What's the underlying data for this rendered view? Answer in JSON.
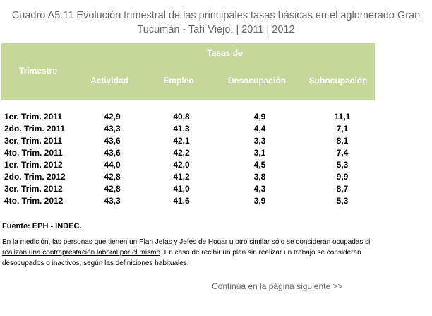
{
  "title": {
    "line1": "Cuadro A5.11 Evolución trimestral de las principales tasas básicas en el aglomerado Gran",
    "line2": "Tucumán - Tafí Viejo. | 2011 | 2012"
  },
  "table": {
    "group_header": "Tasas de",
    "row_header": "Trimestre",
    "columns": [
      "Actividad",
      "Empleo",
      "Desocupación",
      "Subocupación"
    ],
    "rows": [
      {
        "label": "1er. Trim. 2011",
        "values": [
          "42,9",
          "40,8",
          "4,9",
          "11,1"
        ]
      },
      {
        "label": "2do. Trim. 2011",
        "values": [
          "43,3",
          "41,3",
          "4,4",
          "7,1"
        ]
      },
      {
        "label": "3er. Trim. 2011",
        "values": [
          "43,6",
          "42,1",
          "3,3",
          "8,1"
        ]
      },
      {
        "label": "4to. Trim. 2011",
        "values": [
          "43,6",
          "42,2",
          "3,1",
          "7,4"
        ]
      },
      {
        "label": "1er. Trim. 2012",
        "values": [
          "44,0",
          "42,0",
          "4,5",
          "5,3"
        ]
      },
      {
        "label": "2do. Trim. 2012",
        "values": [
          "42,8",
          "41,2",
          "3,8",
          "9,9"
        ]
      },
      {
        "label": "3er. Trim. 2012",
        "values": [
          "42,8",
          "41,0",
          "4,3",
          "8,7"
        ]
      },
      {
        "label": "4to. Trim. 2012",
        "values": [
          "43,3",
          "41,6",
          "3,9",
          "5,3"
        ]
      }
    ]
  },
  "source": "Fuente: EPH - INDEC.",
  "note": {
    "part1": "En la medición, las personas que tienen un Plan Jefas y Jefes de Hogar u otro similar ",
    "underlined": "sólo se consideran ocupadas si realizan una contraprestación laboral por el mismo",
    "part2": ". En caso de recibir un plan sin realizar un trabajo se consideran desocupados o inactivos, según las definiciones habituales."
  },
  "continue_link": "Continúa en la página siguiente >>",
  "colors": {
    "header_band": "#c6d79c",
    "title_text": "#666666"
  }
}
